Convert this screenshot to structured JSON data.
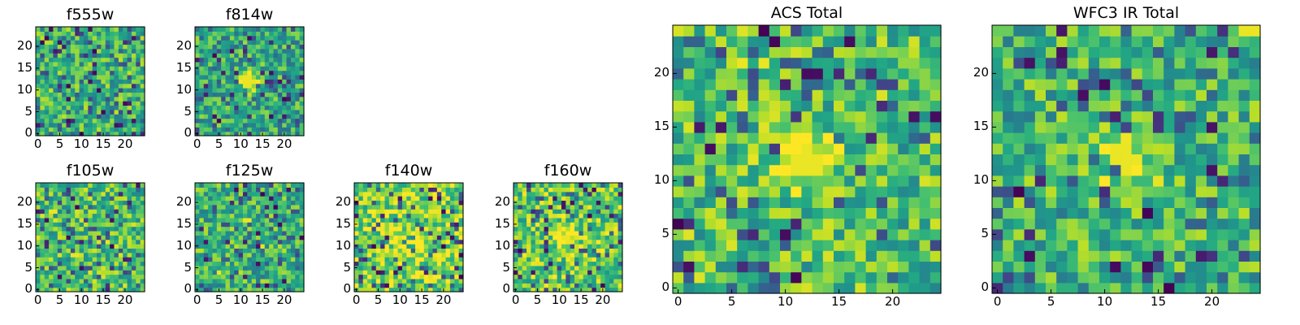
{
  "chart_data": [
    {
      "type": "heatmap",
      "title": "f555w",
      "xticks": [
        "0",
        "5",
        "10",
        "15",
        "20"
      ],
      "yticks": [
        "0",
        "5",
        "10",
        "15",
        "20"
      ],
      "xlim": [
        -0.5,
        24.5
      ],
      "ylim": [
        -0.5,
        24.5
      ],
      "size": 25,
      "hotspot": null,
      "hot_pixels": [],
      "seed": 555,
      "bias": 0.05,
      "colormap": "viridis"
    },
    {
      "type": "heatmap",
      "title": "f814w",
      "xticks": [
        "0",
        "5",
        "10",
        "15",
        "20"
      ],
      "yticks": [
        "0",
        "5",
        "10",
        "15",
        "20"
      ],
      "xlim": [
        -0.5,
        24.5
      ],
      "ylim": [
        -0.5,
        24.5
      ],
      "size": 25,
      "hotspot": [
        12,
        12
      ],
      "hot_pixels": [
        [
          11,
          11
        ],
        [
          12,
          11
        ],
        [
          11,
          12
        ],
        [
          12,
          12
        ],
        [
          13,
          12
        ],
        [
          11,
          13
        ],
        [
          12,
          13
        ]
      ],
      "seed": 814,
      "bias": 0.0,
      "colormap": "viridis"
    },
    {
      "type": "heatmap",
      "title": "f105w",
      "xticks": [
        "0",
        "5",
        "10",
        "15",
        "20"
      ],
      "yticks": [
        "0",
        "5",
        "10",
        "15",
        "20"
      ],
      "xlim": [
        -0.5,
        24.5
      ],
      "ylim": [
        -0.5,
        24.5
      ],
      "size": 25,
      "hotspot": null,
      "hot_pixels": [
        [
          3,
          18
        ],
        [
          4,
          18
        ],
        [
          8,
          8
        ],
        [
          9,
          8
        ],
        [
          16,
          11
        ]
      ],
      "seed": 105,
      "bias": 0.1,
      "colormap": "viridis"
    },
    {
      "type": "heatmap",
      "title": "f125w",
      "xticks": [
        "0",
        "5",
        "10",
        "15",
        "20"
      ],
      "yticks": [
        "0",
        "5",
        "10",
        "15",
        "20"
      ],
      "xlim": [
        -0.5,
        24.5
      ],
      "ylim": [
        -0.5,
        24.5
      ],
      "size": 25,
      "hotspot": null,
      "hot_pixels": [
        [
          11,
          16
        ],
        [
          12,
          16
        ],
        [
          15,
          10
        ],
        [
          5,
          4
        ]
      ],
      "seed": 125,
      "bias": 0.05,
      "colormap": "viridis"
    },
    {
      "type": "heatmap",
      "title": "f140w",
      "xticks": [
        "0",
        "5",
        "10",
        "15",
        "20"
      ],
      "yticks": [
        "0",
        "5",
        "10",
        "15",
        "20"
      ],
      "xlim": [
        -0.5,
        24.5
      ],
      "ylim": [
        -0.5,
        24.5
      ],
      "size": 25,
      "hotspot": [
        13,
        10
      ],
      "hot_pixels": [
        [
          2,
          22
        ],
        [
          3,
          22
        ],
        [
          4,
          21
        ]
      ],
      "seed": 140,
      "bias": 0.2,
      "colormap": "viridis"
    },
    {
      "type": "heatmap",
      "title": "f160w",
      "xticks": [
        "0",
        "5",
        "10",
        "15",
        "20"
      ],
      "yticks": [
        "0",
        "5",
        "10",
        "15",
        "20"
      ],
      "xlim": [
        -0.5,
        24.5
      ],
      "ylim": [
        -0.5,
        24.5
      ],
      "size": 25,
      "hotspot": [
        12,
        12
      ],
      "hot_pixels": [
        [
          11,
          12
        ],
        [
          12,
          12
        ],
        [
          12,
          11
        ],
        [
          13,
          11
        ]
      ],
      "seed": 160,
      "bias": 0.15,
      "colormap": "viridis"
    },
    {
      "type": "heatmap",
      "title": "ACS Total",
      "xticks": [
        "0",
        "5",
        "10",
        "15",
        "20"
      ],
      "yticks": [
        "0",
        "5",
        "10",
        "15",
        "20"
      ],
      "xlim": [
        -0.5,
        24.5
      ],
      "ylim": [
        -0.5,
        24.5
      ],
      "size": 25,
      "hotspot": [
        12,
        12
      ],
      "hot_pixels": [
        [
          11,
          12
        ],
        [
          12,
          12
        ],
        [
          13,
          12
        ],
        [
          11,
          11
        ],
        [
          12,
          11
        ],
        [
          13,
          11
        ],
        [
          12,
          13
        ],
        [
          6,
          21
        ],
        [
          8,
          21
        ]
      ],
      "seed": 900,
      "bias": 0.1,
      "colormap": "viridis"
    },
    {
      "type": "heatmap",
      "title": "WFC3 IR Total",
      "xticks": [
        "0",
        "5",
        "10",
        "15",
        "20"
      ],
      "yticks": [
        "0",
        "5",
        "10",
        "15",
        "20"
      ],
      "xlim": [
        -0.5,
        24.5
      ],
      "ylim": [
        -0.5,
        24.5
      ],
      "size": 25,
      "hotspot": [
        12,
        12
      ],
      "hot_pixels": [
        [
          11,
          13
        ],
        [
          12,
          13
        ],
        [
          11,
          12
        ],
        [
          12,
          12
        ],
        [
          13,
          12
        ],
        [
          12,
          11
        ],
        [
          24,
          24
        ],
        [
          23,
          24
        ]
      ],
      "seed": 901,
      "bias": 0.05,
      "colormap": "viridis"
    }
  ]
}
